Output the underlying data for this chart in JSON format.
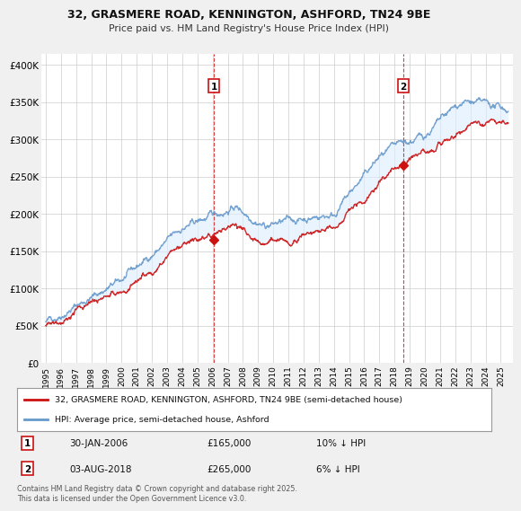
{
  "title_line1": "32, GRASMERE ROAD, KENNINGTON, ASHFORD, TN24 9BE",
  "title_line2": "Price paid vs. HM Land Registry's House Price Index (HPI)",
  "ylabel_ticks": [
    "£0",
    "£50K",
    "£100K",
    "£150K",
    "£200K",
    "£250K",
    "£300K",
    "£350K",
    "£400K"
  ],
  "ytick_values": [
    0,
    50000,
    100000,
    150000,
    200000,
    250000,
    300000,
    350000,
    400000
  ],
  "ylim": [
    0,
    415000
  ],
  "color_price": "#cc1111",
  "color_hpi": "#6699cc",
  "color_fill": "#ddeeff",
  "legend_price_label": "32, GRASMERE ROAD, KENNINGTON, ASHFORD, TN24 9BE (semi-detached house)",
  "legend_hpi_label": "HPI: Average price, semi-detached house, Ashford",
  "marker1_date": "30-JAN-2006",
  "marker1_price": 165000,
  "marker1_hpi_text": "10% ↓ HPI",
  "marker2_date": "03-AUG-2018",
  "marker2_price": 265000,
  "marker2_hpi_text": "6% ↓ HPI",
  "marker1_x": 2006.08,
  "marker2_x": 2018.58,
  "footer_text": "Contains HM Land Registry data © Crown copyright and database right 2025.\nThis data is licensed under the Open Government Licence v3.0.",
  "bg_color": "#f0f0f0",
  "plot_bg_color": "#ffffff",
  "grid_color": "#cccccc"
}
